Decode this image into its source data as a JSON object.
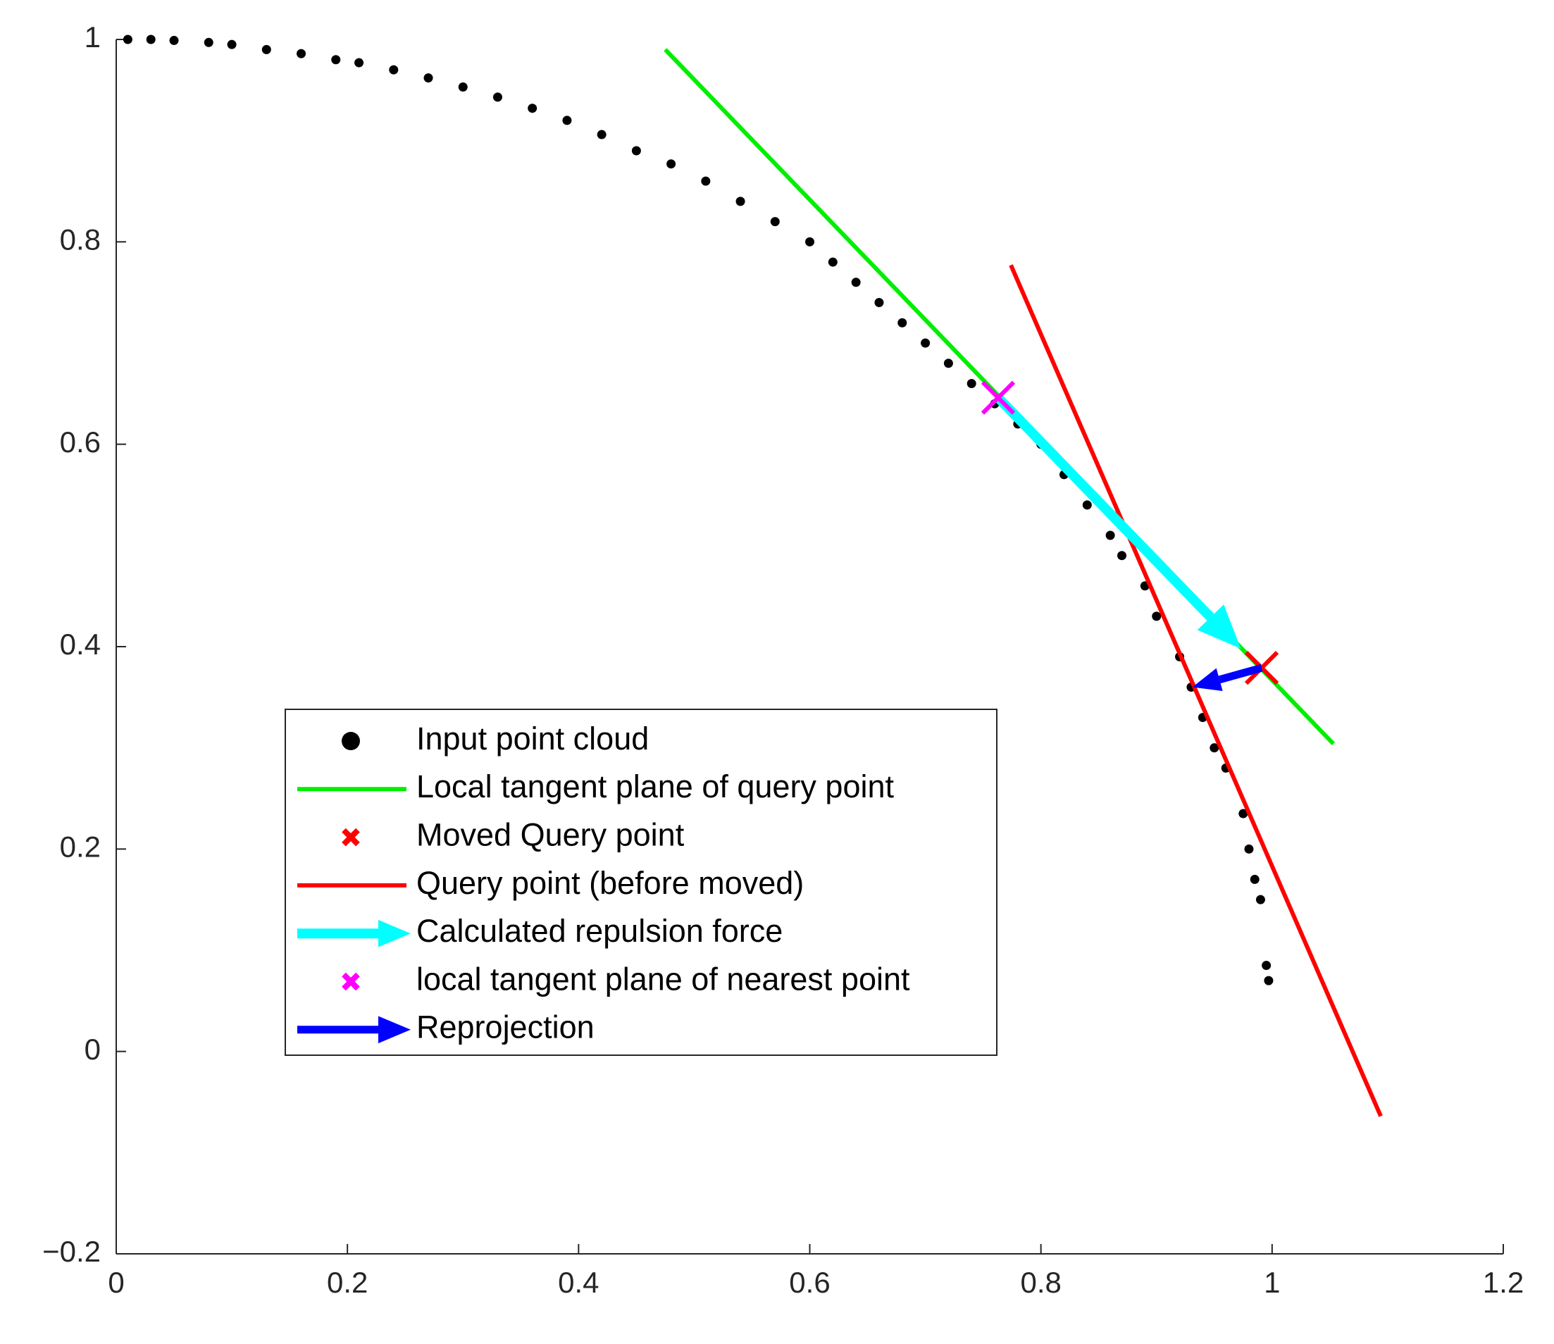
{
  "chart_data": {
    "type": "scatter",
    "xlim": [
      0,
      1.2
    ],
    "xticks": [
      0,
      0.2,
      0.4,
      0.6,
      0.8,
      1,
      1.2
    ],
    "ylim": [
      -0.2,
      1
    ],
    "yticks": [
      {
        "value": -0.2,
        "label": "−0.2"
      },
      0,
      0.2,
      0.4,
      0.6,
      0.8,
      1
    ],
    "grid": false,
    "legend": "lower-left",
    "series": [
      {
        "name": "Input point cloud",
        "color": "#000000",
        "style": "markers",
        "x": [
          0.01,
          0.03,
          0.05,
          0.08,
          0.1,
          0.13,
          0.16,
          0.19,
          0.21,
          0.24,
          0.27,
          0.3,
          0.33,
          0.36,
          0.39,
          0.42,
          0.45,
          0.48,
          0.51,
          0.54,
          0.57,
          0.6,
          0.62,
          0.64,
          0.66,
          0.68,
          0.7,
          0.72,
          0.74,
          0.76,
          0.78,
          0.8,
          0.82,
          0.84,
          0.86,
          0.87,
          0.89,
          0.9,
          0.92,
          0.93,
          0.94,
          0.95,
          0.96,
          0.975,
          0.98,
          0.985,
          0.99,
          0.995,
          0.997
        ],
        "y": [
          1,
          1,
          0.999,
          0.997,
          0.995,
          0.99,
          0.986,
          0.98,
          0.977,
          0.97,
          0.962,
          0.953,
          0.943,
          0.932,
          0.92,
          0.906,
          0.89,
          0.877,
          0.86,
          0.84,
          0.82,
          0.8,
          0.78,
          0.76,
          0.74,
          0.72,
          0.7,
          0.68,
          0.66,
          0.64,
          0.62,
          0.6,
          0.57,
          0.54,
          0.51,
          0.49,
          0.46,
          0.43,
          0.39,
          0.36,
          0.33,
          0.3,
          0.28,
          0.235,
          0.2,
          0.17,
          0.15,
          0.085,
          0.07
        ]
      },
      {
        "name": "Local tangent plane of query point",
        "color": "#00ee00",
        "style": "line",
        "x": [
          0.475,
          1.053
        ],
        "y": [
          0.99,
          0.304
        ]
      },
      {
        "name": "Moved Query point",
        "color": "#ff0000",
        "style": "cross",
        "x": [
          0.991
        ],
        "y": [
          0.379
        ]
      },
      {
        "name": "Query point (before moved)",
        "color": "#ff0000",
        "style": "line",
        "x": [
          0.774,
          1.094
        ],
        "y": [
          0.777,
          -0.064
        ]
      },
      {
        "name": "Calculated repulsion force",
        "color": "#00ffff",
        "style": "arrow",
        "x": [
          0.763,
          0.973
        ],
        "y": [
          0.646,
          0.398
        ]
      },
      {
        "name": "local tangent plane of nearest point",
        "color": "#ff00ff",
        "style": "cross",
        "x": [
          0.763
        ],
        "y": [
          0.646
        ]
      },
      {
        "name": "Reprojection",
        "color": "#0000ff",
        "style": "arrow",
        "x": [
          0.991,
          0.931
        ],
        "y": [
          0.379,
          0.36
        ]
      }
    ]
  }
}
